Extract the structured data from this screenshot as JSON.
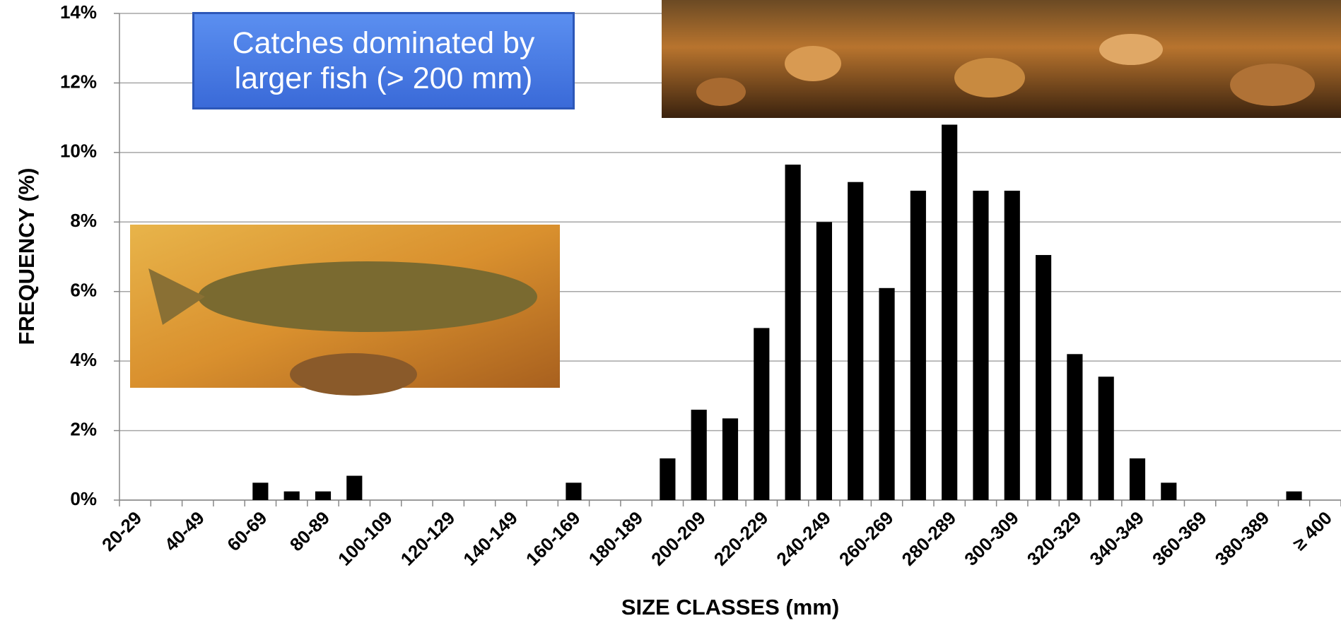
{
  "chart_data": {
    "type": "bar",
    "annotation": "Catches dominated by larger fish (> 200 mm)",
    "x_label": "SIZE CLASSES (mm)",
    "y_label": "FREQUENCY (%)",
    "categories": [
      "20-29",
      null,
      "40-49",
      null,
      "60-69",
      null,
      "80-89",
      null,
      "100-109",
      null,
      "120-129",
      null,
      "140-149",
      null,
      "160-169",
      null,
      "180-189",
      null,
      "200-209",
      null,
      "220-229",
      null,
      "240-249",
      null,
      "260-269",
      null,
      "280-289",
      null,
      "300-309",
      null,
      "320-329",
      null,
      "340-349",
      null,
      "360-369",
      null,
      "380-389",
      null,
      "≥ 400"
    ],
    "values": [
      0,
      0,
      0,
      0,
      0.5,
      0.25,
      0.25,
      0.7,
      0,
      0,
      0,
      0,
      0,
      0,
      0.5,
      0,
      0,
      1.2,
      2.6,
      2.35,
      4.95,
      9.65,
      8.0,
      9.15,
      6.1,
      8.9,
      10.8,
      8.9,
      8.9,
      7.05,
      4.2,
      3.55,
      1.2,
      0.5,
      0,
      0,
      0,
      0.25,
      0
    ],
    "color": "#000000",
    "ylim": [
      0,
      14
    ],
    "yticks": [
      {
        "value": 0,
        "label": "0%"
      },
      {
        "value": 2,
        "label": "2%"
      },
      {
        "value": 4,
        "label": "4%"
      },
      {
        "value": 6,
        "label": "6%"
      },
      {
        "value": 8,
        "label": "8%"
      },
      {
        "value": 10,
        "label": "10%"
      },
      {
        "value": 12,
        "label": "12%"
      },
      {
        "value": 14,
        "label": "14%"
      }
    ],
    "grid": true
  }
}
